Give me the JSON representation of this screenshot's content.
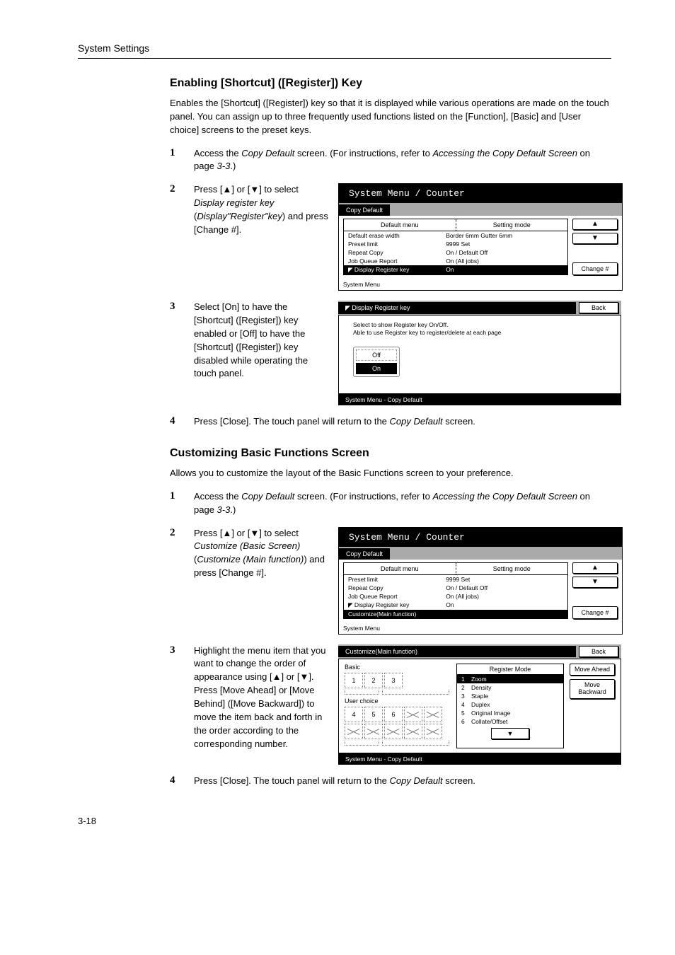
{
  "header": "System Settings",
  "section1": {
    "title": "Enabling [Shortcut] ([Register]) Key",
    "intro": "Enables the [Shortcut] ([Register]) key so that it is displayed while various operations are made on the touch panel. You can assign up to three frequently used functions listed on the [Function], [Basic] and [User choice] screens to the preset keys.",
    "step1": "Access the <i>Copy Default</i> screen. (For instructions, refer to <i>Accessing the Copy Default Screen</i> on page <i>3-3</i>.)",
    "step2": "Press [▲] or [▼] to select <i>Display register key</i> (<i>Display\"Register\"key</i>) and press [Change #].",
    "step3": "Select [On] to have the [Shortcut] ([Register]) key enabled or [Off] to have the [Shortcut] ([Register]) key disabled while operating the touch panel.",
    "step4": "Press [Close]. The touch panel will return to the <i>Copy Default</i> screen."
  },
  "panel1": {
    "title": "System Menu / Counter",
    "crumb": "Copy Default",
    "colA": "Default menu",
    "colB": "Setting mode",
    "rows": [
      [
        "Default erase width",
        "Border   6mm   Gutter     6mm"
      ],
      [
        "Preset limit",
        "9999 Set"
      ],
      [
        "Repeat Copy",
        "On / Default Off"
      ],
      [
        "Job Queue Report",
        "On (All jobs)"
      ]
    ],
    "rowHL": [
      "◤ Display Register key",
      "On"
    ],
    "change": "Change #",
    "footer": "System Menu"
  },
  "panel2": {
    "tab": "◤ Display Register key",
    "back": "Back",
    "msg1": "Select to show Register key On/Off.",
    "msg2": "Able to use Register key to register/delete at each page",
    "off": "Off",
    "on": "On",
    "footer": "System Menu      -   Copy Default"
  },
  "section2": {
    "title": "Customizing Basic Functions Screen",
    "intro": "Allows you to customize the layout of the Basic Functions screen to your preference.",
    "step1": "Access the <i>Copy Default</i> screen. (For instructions, refer to <i>Accessing the Copy Default Screen</i> on page <i>3-3</i>.)",
    "step2": "Press [▲] or [▼] to select <i>Customize (Basic Screen)</i> (<i>Customize (Main function)</i>) and press [Change #].",
    "step3": "Highlight the menu item that you want to change the order of appearance using [▲] or [▼]. Press [Move Ahead] or [Move Behind] ([Move Backward]) to move the item back and forth in the order according to the corresponding number.",
    "step4": "Press [Close]. The touch panel will return to the <i>Copy Default</i> screen."
  },
  "panel3": {
    "title": "System Menu / Counter",
    "crumb": "Copy Default",
    "colA": "Default menu",
    "colB": "Setting mode",
    "rows": [
      [
        "Preset limit",
        "9999 Set"
      ],
      [
        "Repeat Copy",
        "On / Default Off"
      ],
      [
        "Job Queue Report",
        "On (All jobs)"
      ],
      [
        "◤ Display Register key",
        "On"
      ]
    ],
    "rowHL": [
      "Customize(Main function)",
      ""
    ],
    "change": "Change #",
    "footer": "System Menu"
  },
  "panel4": {
    "tab": "Customize(Main function)",
    "back": "Back",
    "basic": "Basic",
    "user": "User choice",
    "regMode": "Register Mode",
    "items": [
      "Zoom",
      "Density",
      "Staple",
      "Duplex",
      "Original Image",
      "Collate/Offset"
    ],
    "moveA": "Move Ahead",
    "moveB": "Move Backward",
    "footer": "System Menu      -   Copy Default"
  },
  "pageNum": "3-18"
}
